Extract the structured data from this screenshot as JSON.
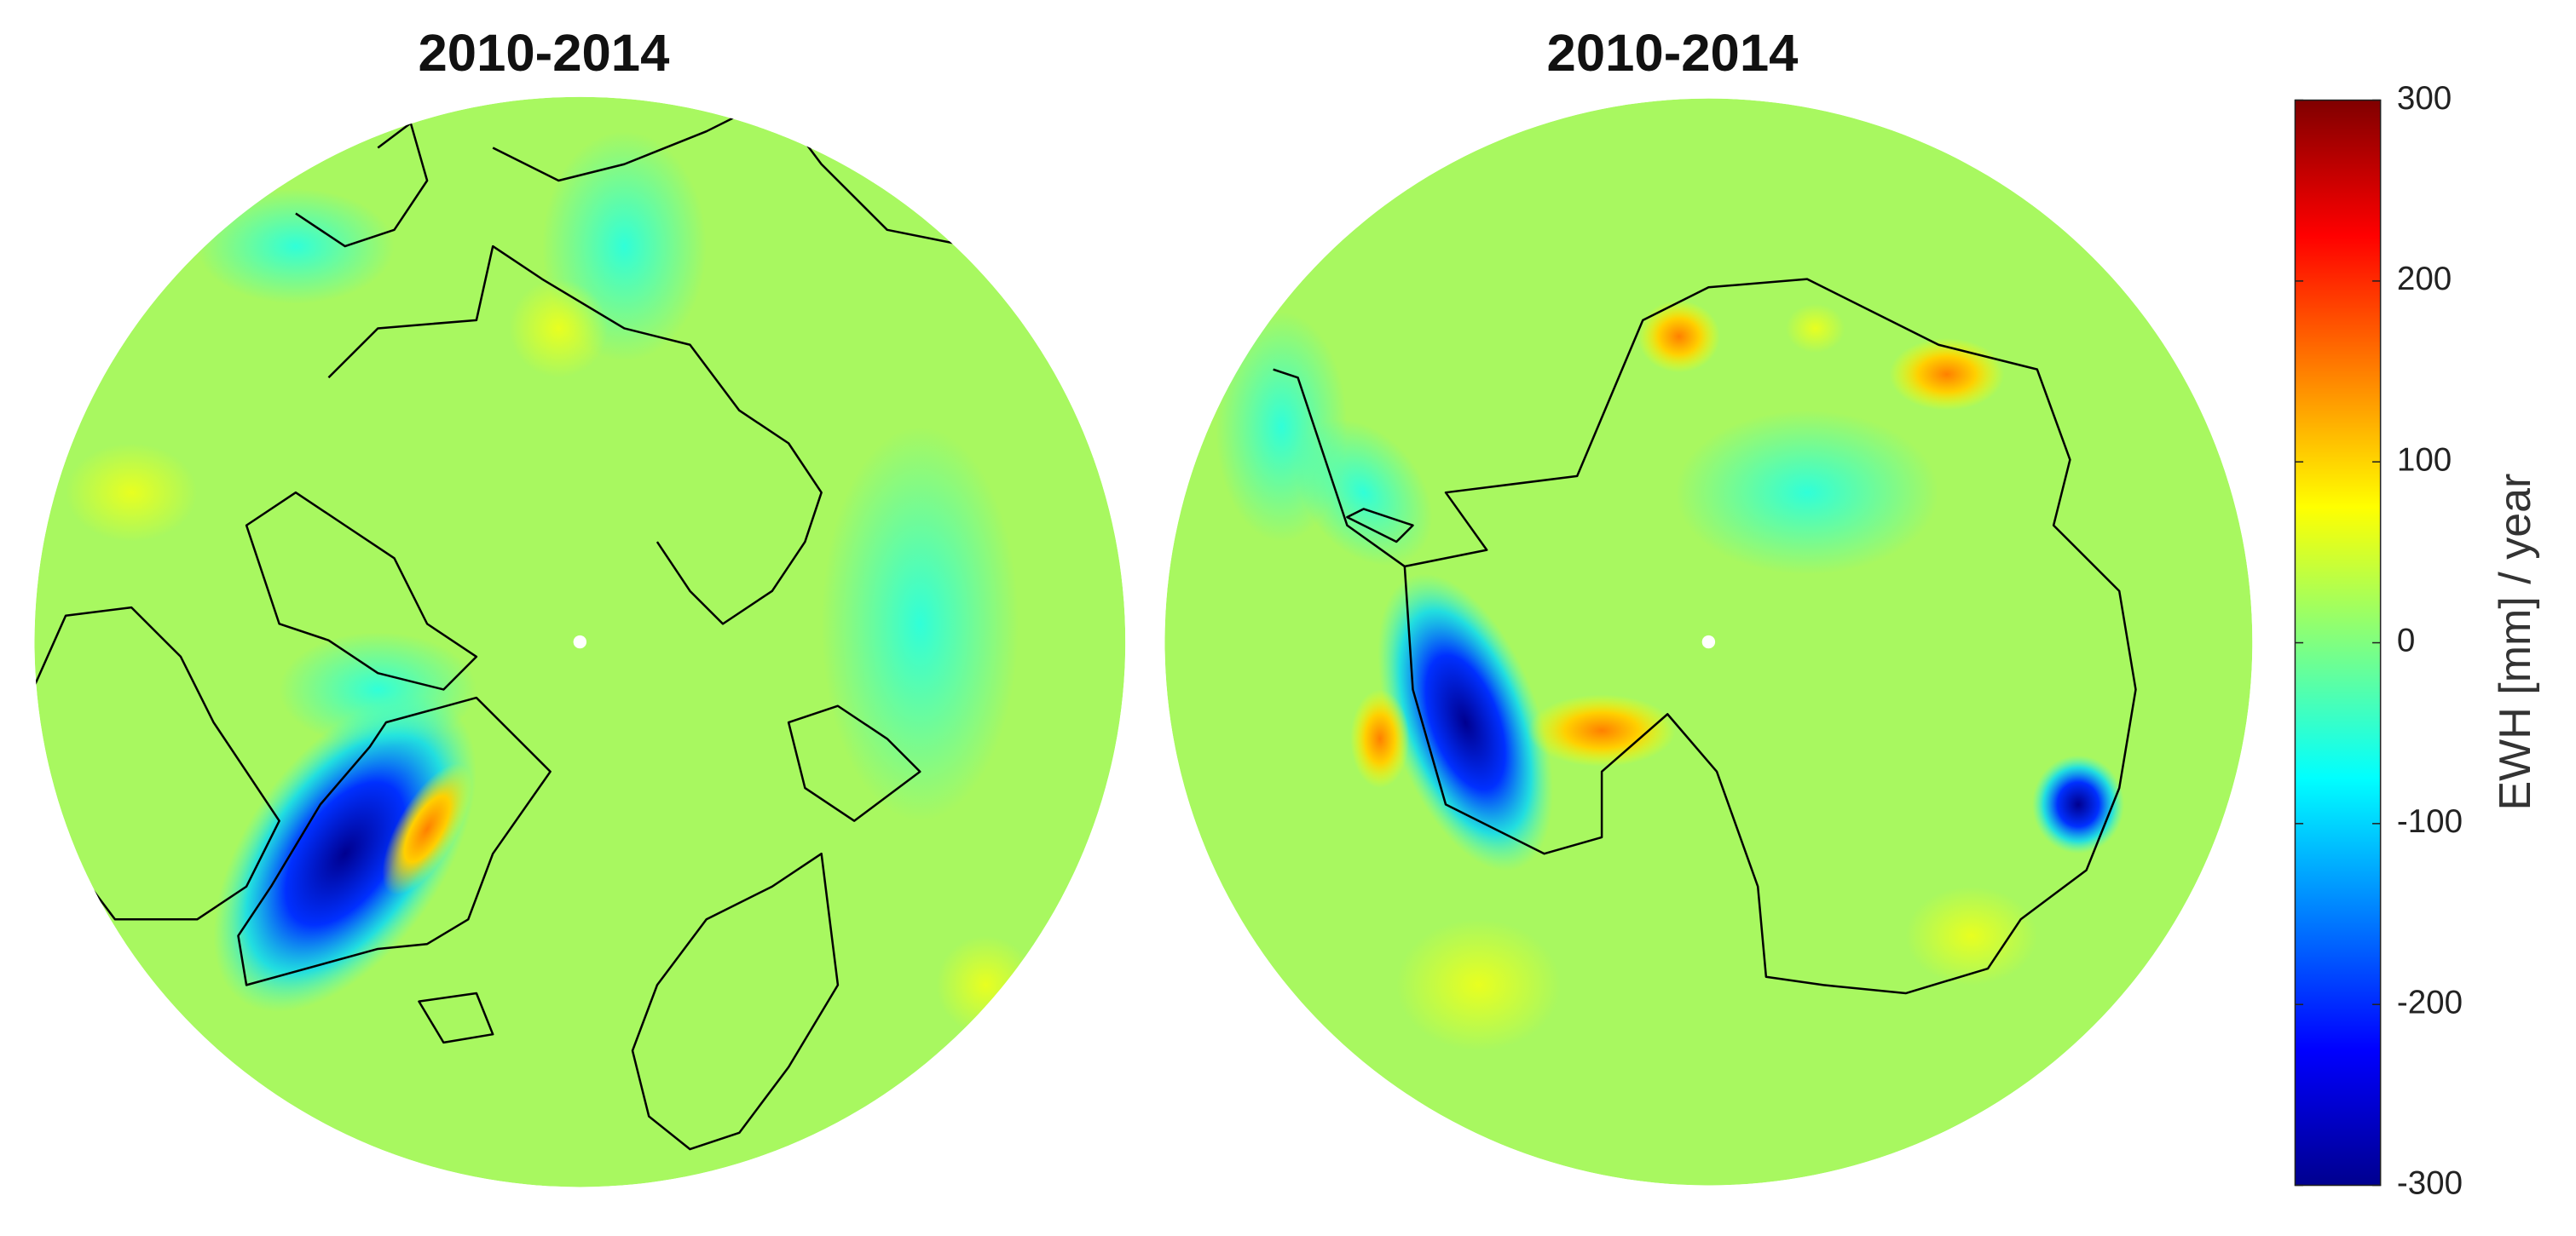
{
  "maps": [
    {
      "title": "2010-2014"
    },
    {
      "title": "2010-2014"
    }
  ],
  "colorbar": {
    "label": "EWH [mm] / year",
    "range": [
      -300,
      300
    ],
    "ticks": [
      300,
      200,
      100,
      0,
      -100,
      -200,
      -300
    ]
  }
}
